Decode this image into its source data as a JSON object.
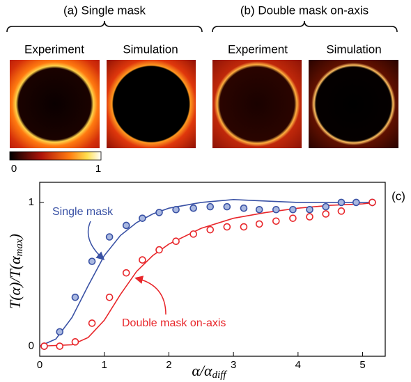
{
  "panels": [
    {
      "title": "(a) Single mask",
      "left": "Experiment",
      "right": "Simulation"
    },
    {
      "title": "(b) Double mask on-axis",
      "left": "Experiment",
      "right": "Simulation"
    }
  ],
  "colorbar": {
    "ticks": [
      "0",
      "1"
    ]
  },
  "chart_data": {
    "type": "scatter",
    "panel_label": "(c)",
    "xlabel": [
      "α/α",
      "diff"
    ],
    "ylabel": [
      "T(α)/T(α",
      "max",
      ")"
    ],
    "xlim": [
      0,
      5.35
    ],
    "ylim": [
      -0.07,
      1.14
    ],
    "xticks": [
      0,
      1,
      2,
      3,
      4,
      5
    ],
    "yticks": [
      0,
      1
    ],
    "series": [
      {
        "name": "Single mask",
        "color": "#3a52a5",
        "fill": "#a9b8e0",
        "style": "markers",
        "x": [
          0.07,
          0.31,
          0.55,
          0.81,
          1.08,
          1.34,
          1.59,
          1.85,
          2.11,
          2.38,
          2.64,
          2.9,
          3.16,
          3.4,
          3.66,
          3.92,
          4.18,
          4.43,
          4.67,
          4.9,
          5.15
        ],
        "values": [
          0,
          0.1,
          0.34,
          0.59,
          0.76,
          0.84,
          0.89,
          0.93,
          0.95,
          0.96,
          0.97,
          0.97,
          0.96,
          0.95,
          0.95,
          0.95,
          0.95,
          0.97,
          1.0,
          1.0,
          1.0
        ]
      },
      {
        "name": "Double mask on-axis",
        "color": "#e8262a",
        "fill": "#ffffff",
        "style": "markers",
        "x": [
          0.07,
          0.31,
          0.55,
          0.81,
          1.08,
          1.34,
          1.59,
          1.85,
          2.11,
          2.38,
          2.64,
          2.9,
          3.16,
          3.4,
          3.66,
          3.92,
          4.18,
          4.43,
          4.67,
          5.15
        ],
        "values": [
          0,
          0,
          0.03,
          0.16,
          0.34,
          0.51,
          0.6,
          0.67,
          0.73,
          0.78,
          0.81,
          0.83,
          0.83,
          0.85,
          0.87,
          0.89,
          0.9,
          0.92,
          0.94,
          1.0
        ]
      },
      {
        "color": "#3a52a5",
        "style": "line",
        "x": [
          0,
          0.25,
          0.5,
          0.75,
          1,
          1.25,
          1.5,
          1.75,
          2,
          2.5,
          3,
          3.5,
          4,
          4.5,
          5,
          5.2
        ],
        "values": [
          0,
          0.05,
          0.2,
          0.42,
          0.63,
          0.77,
          0.86,
          0.92,
          0.96,
          1.0,
          1.02,
          1.01,
          1.0,
          1.0,
          1.0,
          1.0
        ]
      },
      {
        "color": "#e8262a",
        "style": "line",
        "x": [
          0,
          0.5,
          0.75,
          1,
          1.25,
          1.5,
          1.75,
          2,
          2.5,
          3,
          3.5,
          4,
          4.5,
          5,
          5.2
        ],
        "values": [
          0,
          0.01,
          0.06,
          0.18,
          0.36,
          0.52,
          0.63,
          0.71,
          0.82,
          0.89,
          0.93,
          0.96,
          0.98,
          0.99,
          1.0
        ]
      }
    ]
  }
}
